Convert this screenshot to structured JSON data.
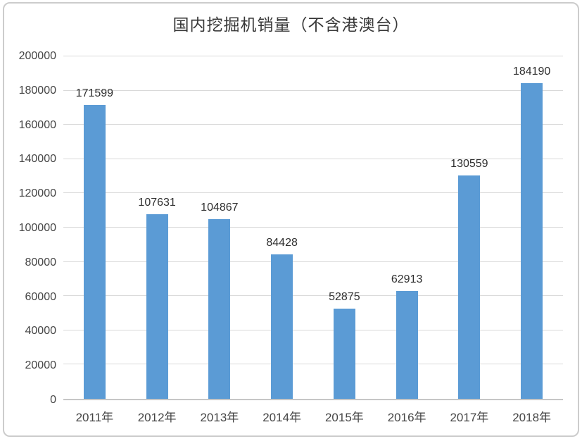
{
  "chart_data": {
    "type": "bar",
    "title": "国内挖掘机销量（不含港澳台）",
    "categories": [
      "2011年",
      "2012年",
      "2013年",
      "2014年",
      "2015年",
      "2016年",
      "2017年",
      "2018年"
    ],
    "values": [
      171599,
      107631,
      104867,
      84428,
      52875,
      62913,
      130559,
      184190
    ],
    "data_labels": [
      "171599",
      "107631",
      "104867",
      "84428",
      "52875",
      "62913",
      "130559",
      "184190"
    ],
    "xlabel": "",
    "ylabel": "",
    "ylim": [
      0,
      200000
    ],
    "ytick_step": 20000,
    "ytick_values": [
      0,
      20000,
      40000,
      60000,
      80000,
      100000,
      120000,
      140000,
      160000,
      180000,
      200000
    ],
    "ytick_labels": [
      "0",
      "20000",
      "40000",
      "60000",
      "80000",
      "100000",
      "120000",
      "140000",
      "160000",
      "180000",
      "200000"
    ],
    "grid": true,
    "legend_position": "none",
    "colors": {
      "bar": "#5b9bd5",
      "gridline": "#d9d9d9",
      "axis_line": "#c6c6c6",
      "frame_border": "#cccccc",
      "title_text": "#383838",
      "tick_text": "#454545",
      "data_label_text": "#2f2f2f",
      "background": "#ffffff"
    }
  }
}
